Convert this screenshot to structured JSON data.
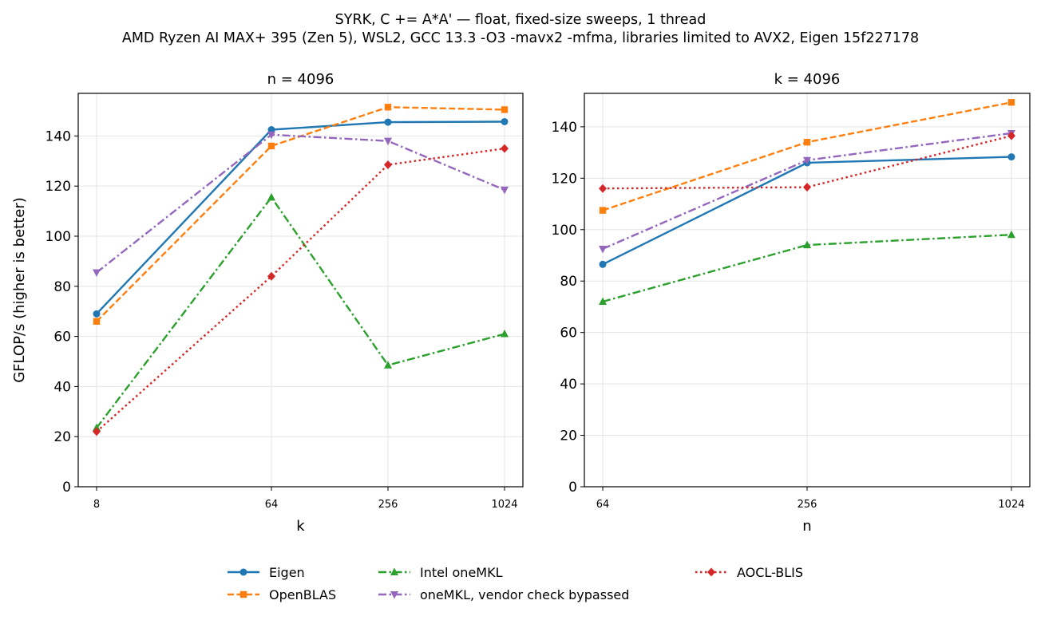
{
  "figure": {
    "title_line1": "SYRK, C += A*A' — float, fixed-size sweeps, 1 thread",
    "title_line2": "AMD Ryzen AI MAX+ 395 (Zen 5), WSL2, GCC 13.3 -O3 -mavx2 -mfma, libraries limited to AVX2, Eigen 15f227178"
  },
  "series_styles": [
    {
      "name": "Eigen",
      "color": "#1f77b4",
      "dash": "solid",
      "marker": "circle"
    },
    {
      "name": "OpenBLAS",
      "color": "#ff7f0e",
      "dash": "dashed",
      "marker": "square"
    },
    {
      "name": "Intel oneMKL",
      "color": "#2ca02c",
      "dash": "dashdot",
      "marker": "triangle-up"
    },
    {
      "name": "oneMKL, vendor check bypassed",
      "color": "#9467bd",
      "dash": "dashdot",
      "marker": "triangle-down"
    },
    {
      "name": "AOCL-BLIS",
      "color": "#d62728",
      "dash": "dotted",
      "marker": "diamond"
    }
  ],
  "legend": {
    "placement": "bottom-center",
    "columns": [
      [
        "Eigen",
        "OpenBLAS"
      ],
      [
        "Intel oneMKL",
        "oneMKL, vendor check bypassed"
      ],
      [
        "AOCL-BLIS"
      ]
    ]
  },
  "chart_data": [
    {
      "type": "line",
      "title": "n = 4096",
      "xlabel": "k",
      "ylabel": "GFLOP/s (higher is better)",
      "x": [
        8,
        64,
        256,
        1024
      ],
      "xscale": "log2",
      "x_tick_labels": [
        "8",
        "64",
        "256",
        "1024"
      ],
      "ylim": [
        0,
        157
      ],
      "y_ticks": [
        0,
        20,
        40,
        60,
        80,
        100,
        120,
        140
      ],
      "grid": true,
      "series": [
        {
          "name": "Eigen",
          "values": [
            69,
            142.5,
            145.5,
            145.7
          ]
        },
        {
          "name": "OpenBLAS",
          "values": [
            66,
            136,
            151.5,
            150.5
          ]
        },
        {
          "name": "Intel oneMKL",
          "values": [
            23.5,
            115.5,
            48.5,
            61
          ]
        },
        {
          "name": "oneMKL, vendor check bypassed",
          "values": [
            85.5,
            140.5,
            138,
            118.5
          ]
        },
        {
          "name": "AOCL-BLIS",
          "values": [
            22,
            84,
            128.5,
            135
          ]
        }
      ]
    },
    {
      "type": "line",
      "title": "k = 4096",
      "xlabel": "n",
      "ylabel": "",
      "x": [
        64,
        256,
        1024
      ],
      "xscale": "log2",
      "x_tick_labels": [
        "64",
        "256",
        "1024"
      ],
      "ylim": [
        0,
        153
      ],
      "y_ticks": [
        0,
        20,
        40,
        60,
        80,
        100,
        120,
        140
      ],
      "grid": true,
      "series": [
        {
          "name": "Eigen",
          "values": [
            86.5,
            126,
            128.3
          ]
        },
        {
          "name": "OpenBLAS",
          "values": [
            107.5,
            134,
            149.5
          ]
        },
        {
          "name": "Intel oneMKL",
          "values": [
            72,
            94,
            98
          ]
        },
        {
          "name": "oneMKL, vendor check bypassed",
          "values": [
            92.5,
            127,
            137.5
          ]
        },
        {
          "name": "AOCL-BLIS",
          "values": [
            116,
            116.5,
            136.5
          ]
        }
      ]
    }
  ]
}
